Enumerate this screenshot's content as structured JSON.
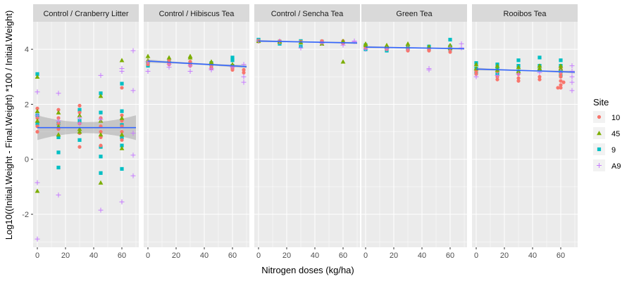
{
  "chart_data": {
    "type": "scatter",
    "facet_type": "faceted scatter with linear fit and confidence band",
    "xlabel": "Nitrogen doses (kg/ha)",
    "ylabel": "Log10((Initial.Weight - Final.Weight) *100 / Initial.Weight)",
    "x_ticks": [
      0,
      20,
      40,
      60
    ],
    "y_ticks": [
      -2,
      0,
      2,
      4
    ],
    "xlim": [
      -3,
      72
    ],
    "ylim": [
      -3.2,
      5.0
    ],
    "grid": true,
    "legend": {
      "title": "Site",
      "position": "right",
      "entries": [
        {
          "label": "10",
          "shape": "circle",
          "color": "#F8766D"
        },
        {
          "label": "45",
          "shape": "triangle",
          "color": "#7CAE00"
        },
        {
          "label": "9",
          "shape": "square",
          "color": "#00BFC4"
        },
        {
          "label": "A9",
          "shape": "plus",
          "color": "#C77CFF"
        }
      ]
    },
    "colors": {
      "panel_bg": "#EBEBEB",
      "strip_bg": "#D9D9D9",
      "grid": "#FFFFFF",
      "fit_line": "#3366FF",
      "band": "#999999"
    },
    "panels": [
      {
        "title": "Control / Cranberry Litter",
        "fit": {
          "y_at_x0": 1.15,
          "y_at_x70": 1.15,
          "band_half_width_ends": 0.45,
          "band_half_width_mid": 0.2
        },
        "points": {
          "10": [
            [
              0,
              1.85
            ],
            [
              0,
              1.5
            ],
            [
              0,
              1.2
            ],
            [
              0,
              1.0
            ],
            [
              15,
              1.8
            ],
            [
              15,
              1.5
            ],
            [
              15,
              1.3
            ],
            [
              15,
              1.1
            ],
            [
              30,
              1.95
            ],
            [
              30,
              1.7
            ],
            [
              30,
              1.3
            ],
            [
              30,
              0.95
            ],
            [
              30,
              0.45
            ],
            [
              45,
              1.5
            ],
            [
              45,
              1.2
            ],
            [
              45,
              1.0
            ],
            [
              45,
              0.8
            ],
            [
              45,
              0.5
            ],
            [
              60,
              2.6
            ],
            [
              60,
              1.6
            ],
            [
              60,
              1.4
            ],
            [
              60,
              1.2
            ],
            [
              60,
              1.0
            ],
            [
              60,
              0.7
            ]
          ],
          "45": [
            [
              0,
              3.0
            ],
            [
              0,
              1.75
            ],
            [
              0,
              1.4
            ],
            [
              0,
              -1.15
            ],
            [
              15,
              1.7
            ],
            [
              15,
              1.2
            ],
            [
              15,
              0.9
            ],
            [
              30,
              1.6
            ],
            [
              30,
              1.1
            ],
            [
              30,
              1.0
            ],
            [
              45,
              2.3
            ],
            [
              45,
              1.4
            ],
            [
              45,
              0.9
            ],
            [
              45,
              -0.85
            ],
            [
              60,
              3.6
            ],
            [
              60,
              1.5
            ],
            [
              60,
              0.9
            ],
            [
              60,
              0.4
            ]
          ],
          "9": [
            [
              0,
              3.1
            ],
            [
              0,
              1.6
            ],
            [
              0,
              1.3
            ],
            [
              15,
              1.3
            ],
            [
              15,
              0.8
            ],
            [
              15,
              0.25
            ],
            [
              15,
              -0.3
            ],
            [
              30,
              1.8
            ],
            [
              30,
              1.4
            ],
            [
              30,
              0.7
            ],
            [
              45,
              2.4
            ],
            [
              45,
              1.7
            ],
            [
              45,
              0.45
            ],
            [
              45,
              0.1
            ],
            [
              45,
              -0.5
            ],
            [
              60,
              2.75
            ],
            [
              60,
              1.75
            ],
            [
              60,
              1.25
            ],
            [
              60,
              0.8
            ],
            [
              60,
              0.5
            ],
            [
              60,
              -0.35
            ]
          ],
          "A9": [
            [
              0,
              2.45
            ],
            [
              0,
              1.6
            ],
            [
              0,
              -0.85
            ],
            [
              0,
              -2.9
            ],
            [
              15,
              2.4
            ],
            [
              15,
              1.4
            ],
            [
              15,
              -1.3
            ],
            [
              30,
              1.5
            ],
            [
              30,
              1.3
            ],
            [
              45,
              3.05
            ],
            [
              45,
              1.45
            ],
            [
              45,
              -1.85
            ],
            [
              60,
              3.3
            ],
            [
              60,
              3.2
            ],
            [
              60,
              -1.55
            ],
            [
              68,
              3.95
            ],
            [
              68,
              2.5
            ],
            [
              68,
              0.95
            ],
            [
              68,
              0.15
            ],
            [
              68,
              -0.6
            ]
          ]
        }
      },
      {
        "title": "Control / Hibiscus Tea",
        "fit": {
          "y_at_x0": 3.57,
          "y_at_x70": 3.37,
          "band_half_width_ends": 0.06,
          "band_half_width_mid": 0.03
        },
        "points": {
          "10": [
            [
              0,
              3.55
            ],
            [
              0,
              3.45
            ],
            [
              15,
              3.6
            ],
            [
              15,
              3.5
            ],
            [
              15,
              3.45
            ],
            [
              30,
              3.55
            ],
            [
              30,
              3.45
            ],
            [
              30,
              3.4
            ],
            [
              45,
              3.45
            ],
            [
              45,
              3.35
            ],
            [
              45,
              3.3
            ],
            [
              60,
              3.35
            ],
            [
              60,
              3.3
            ],
            [
              60,
              3.25
            ],
            [
              68,
              3.25
            ],
            [
              68,
              3.15
            ]
          ],
          "45": [
            [
              0,
              3.75
            ],
            [
              0,
              3.6
            ],
            [
              15,
              3.7
            ],
            [
              30,
              3.75
            ],
            [
              30,
              3.7
            ],
            [
              45,
              3.55
            ],
            [
              45,
              3.5
            ],
            [
              60,
              3.45
            ]
          ],
          "9": [
            [
              0,
              3.5
            ],
            [
              0,
              3.4
            ],
            [
              15,
              3.6
            ],
            [
              15,
              3.55
            ],
            [
              30,
              3.5
            ],
            [
              45,
              3.5
            ],
            [
              45,
              3.45
            ],
            [
              60,
              3.7
            ],
            [
              60,
              3.6
            ],
            [
              60,
              3.4
            ]
          ],
          "A9": [
            [
              0,
              3.55
            ],
            [
              0,
              3.2
            ],
            [
              15,
              3.45
            ],
            [
              15,
              3.35
            ],
            [
              30,
              3.4
            ],
            [
              30,
              3.2
            ],
            [
              45,
              3.3
            ],
            [
              45,
              3.25
            ],
            [
              60,
              3.35
            ],
            [
              68,
              3.45
            ],
            [
              68,
              3.0
            ],
            [
              68,
              2.8
            ]
          ]
        }
      },
      {
        "title": "Control / Sencha Tea",
        "fit": {
          "y_at_x0": 4.3,
          "y_at_x70": 4.23,
          "band_half_width_ends": 0.04,
          "band_half_width_mid": 0.02
        },
        "points": {
          "10": [
            [
              0,
              4.32
            ],
            [
              0,
              4.28
            ],
            [
              15,
              4.3
            ],
            [
              15,
              4.25
            ],
            [
              30,
              4.28
            ],
            [
              45,
              4.3
            ],
            [
              45,
              4.25
            ],
            [
              60,
              4.3
            ],
            [
              60,
              4.22
            ]
          ],
          "45": [
            [
              0,
              4.3
            ],
            [
              15,
              4.28
            ],
            [
              30,
              4.25
            ],
            [
              45,
              4.2
            ],
            [
              60,
              4.3
            ],
            [
              60,
              3.55
            ]
          ],
          "9": [
            [
              0,
              4.35
            ],
            [
              0,
              4.3
            ],
            [
              15,
              4.28
            ],
            [
              15,
              4.2
            ],
            [
              30,
              4.1
            ],
            [
              30,
              4.3
            ],
            [
              45,
              4.28
            ],
            [
              60,
              4.25
            ]
          ],
          "A9": [
            [
              0,
              4.3
            ],
            [
              15,
              4.3
            ],
            [
              30,
              4.05
            ],
            [
              45,
              4.22
            ],
            [
              60,
              4.15
            ],
            [
              68,
              4.3
            ],
            [
              68,
              4.28
            ]
          ]
        }
      },
      {
        "title": "Green Tea",
        "fit": {
          "y_at_x0": 4.08,
          "y_at_x70": 4.02,
          "band_half_width_ends": 0.04,
          "band_half_width_mid": 0.02
        },
        "points": {
          "10": [
            [
              0,
              4.1
            ],
            [
              0,
              4.05
            ],
            [
              15,
              4.05
            ],
            [
              15,
              4.0
            ],
            [
              30,
              4.05
            ],
            [
              30,
              3.95
            ],
            [
              45,
              4.0
            ],
            [
              45,
              3.95
            ],
            [
              60,
              4.0
            ],
            [
              60,
              3.9
            ]
          ],
          "45": [
            [
              0,
              4.2
            ],
            [
              0,
              4.15
            ],
            [
              15,
              4.15
            ],
            [
              15,
              4.1
            ],
            [
              30,
              4.2
            ],
            [
              30,
              4.1
            ],
            [
              45,
              4.1
            ],
            [
              60,
              4.15
            ],
            [
              60,
              4.05
            ]
          ],
          "9": [
            [
              0,
              4.15
            ],
            [
              0,
              4.0
            ],
            [
              15,
              4.05
            ],
            [
              15,
              3.95
            ],
            [
              30,
              4.1
            ],
            [
              30,
              4.0
            ],
            [
              45,
              4.1
            ],
            [
              45,
              4.0
            ],
            [
              60,
              4.35
            ],
            [
              60,
              4.1
            ],
            [
              60,
              4.0
            ]
          ],
          "A9": [
            [
              0,
              4.0
            ],
            [
              15,
              4.02
            ],
            [
              30,
              4.05
            ],
            [
              45,
              3.3
            ],
            [
              45,
              3.25
            ],
            [
              60,
              4.05
            ],
            [
              68,
              4.2
            ],
            [
              68,
              4.05
            ]
          ]
        }
      },
      {
        "title": "Rooibos Tea",
        "fit": {
          "y_at_x0": 3.28,
          "y_at_x70": 3.17,
          "band_half_width_ends": 0.05,
          "band_half_width_mid": 0.02
        },
        "points": {
          "10": [
            [
              0,
              3.2
            ],
            [
              0,
              3.1
            ],
            [
              15,
              3.2
            ],
            [
              15,
              3.0
            ],
            [
              15,
              2.9
            ],
            [
              30,
              3.1
            ],
            [
              30,
              2.95
            ],
            [
              30,
              2.85
            ],
            [
              45,
              3.0
            ],
            [
              45,
              2.9
            ],
            [
              60,
              3.3
            ],
            [
              60,
              3.1
            ],
            [
              60,
              3.0
            ],
            [
              60,
              2.85
            ],
            [
              60,
              2.7
            ],
            [
              60,
              2.6
            ],
            [
              58,
              2.6
            ],
            [
              62,
              2.8
            ]
          ],
          "45": [
            [
              0,
              3.45
            ],
            [
              0,
              3.3
            ],
            [
              15,
              3.4
            ],
            [
              15,
              3.25
            ],
            [
              30,
              3.35
            ],
            [
              30,
              3.2
            ],
            [
              45,
              3.4
            ],
            [
              45,
              3.3
            ],
            [
              60,
              3.4
            ],
            [
              60,
              3.3
            ]
          ],
          "9": [
            [
              0,
              3.5
            ],
            [
              0,
              3.3
            ],
            [
              0,
              3.15
            ],
            [
              15,
              3.45
            ],
            [
              15,
              3.3
            ],
            [
              15,
              3.1
            ],
            [
              30,
              3.6
            ],
            [
              30,
              3.4
            ],
            [
              30,
              3.2
            ],
            [
              45,
              3.7
            ],
            [
              45,
              3.4
            ],
            [
              45,
              3.25
            ],
            [
              60,
              3.6
            ],
            [
              60,
              3.4
            ],
            [
              60,
              3.2
            ],
            [
              60,
              3.05
            ]
          ],
          "A9": [
            [
              0,
              3.0
            ],
            [
              15,
              3.05
            ],
            [
              30,
              3.1
            ],
            [
              45,
              3.15
            ],
            [
              60,
              3.2
            ],
            [
              68,
              3.4
            ],
            [
              68,
              3.2
            ],
            [
              68,
              3.0
            ],
            [
              68,
              2.8
            ],
            [
              68,
              2.5
            ]
          ]
        }
      }
    ]
  }
}
